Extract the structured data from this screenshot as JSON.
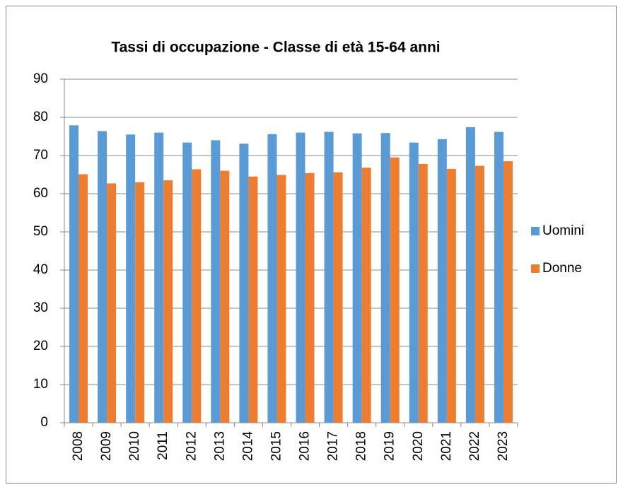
{
  "chart_data": {
    "type": "bar",
    "title": "Tassi di occupazione - Classe di età 15-64 anni",
    "categories": [
      "2008",
      "2009",
      "2010",
      "2011",
      "2012",
      "2013",
      "2014",
      "2015",
      "2016",
      "2017",
      "2018",
      "2019",
      "2020",
      "2021",
      "2022",
      "2023"
    ],
    "series": [
      {
        "name": "Uomini",
        "color": "#5b9bd5",
        "values": [
          77.9,
          76.4,
          75.5,
          76.0,
          73.4,
          74.0,
          73.1,
          75.6,
          76.0,
          76.2,
          75.8,
          75.9,
          73.4,
          74.3,
          77.4,
          76.2
        ]
      },
      {
        "name": "Donne",
        "color": "#ed7d31",
        "values": [
          65.1,
          62.7,
          63.0,
          63.5,
          66.4,
          66.0,
          64.5,
          64.9,
          65.4,
          65.6,
          66.8,
          69.5,
          67.8,
          66.5,
          67.3,
          68.5
        ]
      }
    ],
    "ylim": [
      0,
      90
    ],
    "yticks": [
      0,
      10,
      20,
      30,
      40,
      50,
      60,
      70,
      80,
      90
    ],
    "grid": true,
    "legend": "right"
  }
}
